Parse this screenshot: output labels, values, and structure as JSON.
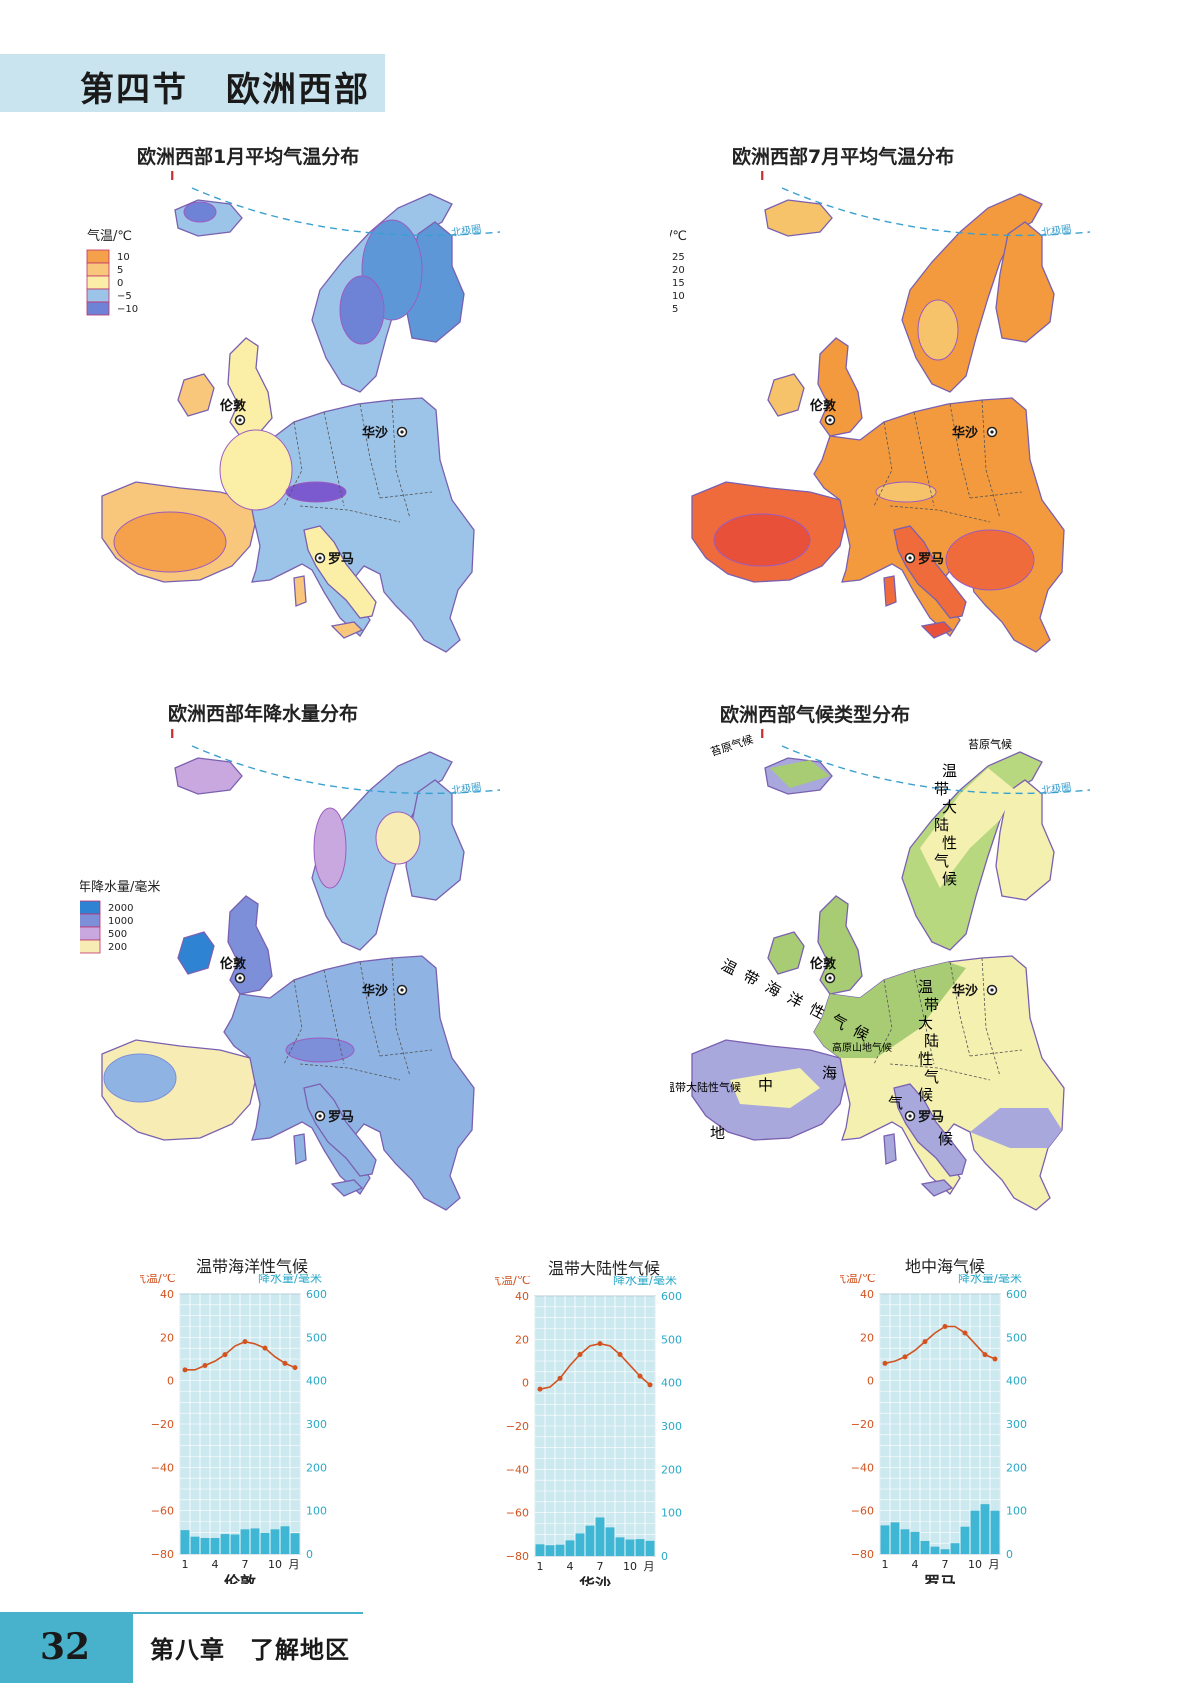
{
  "header": {
    "section": "第四节",
    "title": "欧洲西部"
  },
  "arctic_label": "北极圈",
  "cities": {
    "london": "伦敦",
    "warsaw": "华沙",
    "rome": "罗马"
  },
  "maps": {
    "jan": {
      "title": "欧洲西部1月平均气温分布",
      "legend_title": "气温/℃",
      "legend": [
        {
          "label": "10",
          "color": "#f5a04a"
        },
        {
          "label": "5",
          "color": "#f8c77c"
        },
        {
          "label": "0",
          "color": "#fbefa8"
        },
        {
          "label": "−5",
          "color": "#9cc3e8"
        },
        {
          "label": "−10",
          "color": "#6f83d6"
        }
      ]
    },
    "jul": {
      "title": "欧洲西部7月平均气温分布",
      "legend_title": "气温/℃",
      "legend": [
        {
          "label": "25",
          "color": "#e8503a"
        },
        {
          "label": "20",
          "color": "#ef6b3c"
        },
        {
          "label": "15",
          "color": "#f39a3e"
        },
        {
          "label": "10",
          "color": "#f7c36a"
        },
        {
          "label": "5",
          "color": "#fbf0a8"
        }
      ]
    },
    "precip": {
      "title": "欧洲西部年降水量分布",
      "legend_title": "年降水量/毫米",
      "legend": [
        {
          "label": "2000",
          "color": "#2e83d2"
        },
        {
          "label": "1000",
          "color": "#7d8fd8"
        },
        {
          "label": "500",
          "color": "#c9a8e0"
        },
        {
          "label": "200",
          "color": "#f6ecb4"
        }
      ]
    },
    "climate": {
      "title": "欧洲西部气候类型分布",
      "labels": {
        "tundra": "苔原气候",
        "continental_vertical": [
          "温",
          "带",
          "大",
          "陆",
          "性",
          "气",
          "候"
        ],
        "maritime": [
          "温",
          "带",
          "海",
          "洋",
          "性",
          "气",
          "候"
        ],
        "highland": "高原山地气候",
        "continental_iberia": "温带大陆性气候",
        "mediterranean": [
          "地",
          "中",
          "海",
          "气",
          "候"
        ]
      }
    }
  },
  "chart_axis_labels": {
    "temp": "气温/℃",
    "precip": "降水量/毫米",
    "month_unit": "月"
  },
  "chart_data": [
    {
      "type": "line+bar",
      "title": "温带海洋性气候",
      "city": "伦敦",
      "months": [
        1,
        2,
        3,
        4,
        5,
        6,
        7,
        8,
        9,
        10,
        11,
        12
      ],
      "temperature": [
        5,
        5,
        7,
        9,
        12,
        16,
        18,
        17,
        15,
        11,
        8,
        6
      ],
      "precipitation": [
        55,
        40,
        37,
        37,
        46,
        45,
        57,
        59,
        49,
        57,
        64,
        48
      ],
      "temp_ylim": [
        -80,
        40
      ],
      "precip_ylim": [
        0,
        600
      ],
      "x_ticks": [
        "1",
        "4",
        "7",
        "10",
        "月"
      ],
      "temp_ticks": [
        "40",
        "20",
        "0",
        "−20",
        "−40",
        "−60",
        "−80"
      ],
      "precip_ticks": [
        "600",
        "500",
        "400",
        "300",
        "200",
        "100",
        "0"
      ]
    },
    {
      "type": "line+bar",
      "title": "温带大陆性气候",
      "city": "华沙",
      "months": [
        1,
        2,
        3,
        4,
        5,
        6,
        7,
        8,
        9,
        10,
        11,
        12
      ],
      "temperature": [
        -3,
        -2,
        2,
        8,
        13,
        17,
        18,
        17,
        13,
        8,
        3,
        -1
      ],
      "precipitation": [
        27,
        25,
        26,
        36,
        52,
        70,
        89,
        66,
        43,
        38,
        39,
        35
      ],
      "temp_ylim": [
        -80,
        40
      ],
      "precip_ylim": [
        0,
        600
      ],
      "x_ticks": [
        "1",
        "4",
        "7",
        "10",
        "月"
      ],
      "temp_ticks": [
        "40",
        "20",
        "0",
        "−20",
        "−40",
        "−60",
        "−80"
      ],
      "precip_ticks": [
        "600",
        "500",
        "400",
        "300",
        "200",
        "100",
        "0"
      ]
    },
    {
      "type": "line+bar",
      "title": "地中海气候",
      "city": "罗马",
      "months": [
        1,
        2,
        3,
        4,
        5,
        6,
        7,
        8,
        9,
        10,
        11,
        12
      ],
      "temperature": [
        8,
        9,
        11,
        14,
        18,
        22,
        25,
        25,
        22,
        17,
        12,
        10
      ],
      "precipitation": [
        66,
        73,
        57,
        51,
        30,
        17,
        11,
        25,
        63,
        100,
        115,
        100
      ],
      "temp_ylim": [
        -80,
        40
      ],
      "precip_ylim": [
        0,
        600
      ],
      "x_ticks": [
        "1",
        "4",
        "7",
        "10",
        "月"
      ],
      "temp_ticks": [
        "40",
        "20",
        "0",
        "−20",
        "−40",
        "−60",
        "−80"
      ],
      "precip_ticks": [
        "600",
        "500",
        "400",
        "300",
        "200",
        "100",
        "0"
      ]
    }
  ],
  "footer": {
    "page": "32",
    "chapter": "第八章　了解地区"
  }
}
